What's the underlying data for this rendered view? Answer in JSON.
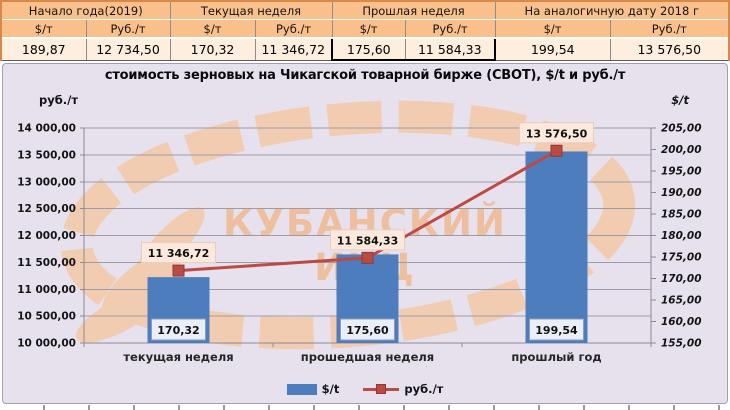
{
  "table": {
    "units": {
      "usd": "$/т",
      "rub": "Руб./т"
    },
    "groups": [
      {
        "label": "Начало года(2019)",
        "usd": "189,87",
        "rub": "12 734,50"
      },
      {
        "label": "Текущая неделя",
        "usd": "170,32",
        "rub": "11 346,72"
      },
      {
        "label": "Прошлая неделя",
        "usd": "175,60",
        "rub": "11 584,33",
        "highlighted": true
      },
      {
        "label": "На аналогичную дату 2018 г",
        "usd": "199,54",
        "rub": "13 576,50"
      }
    ]
  },
  "chart_data": {
    "type": "combo bar+line",
    "title": "стоимость зерновых на Чикагской товарной бирже (CBOT), $/t и руб./т",
    "categories": [
      "текущая неделя",
      "прошедшая неделя",
      "прошлый год"
    ],
    "series": [
      {
        "name": "$/t",
        "type": "bar",
        "axis": "right",
        "color": "#4d7dbc",
        "values": [
          170.32,
          175.6,
          199.54
        ],
        "labels": [
          "170,32",
          "175,60",
          "199,54"
        ]
      },
      {
        "name": "руб./т",
        "type": "line",
        "axis": "left",
        "color": "#bc4a44",
        "values": [
          11346.72,
          11584.33,
          13576.5
        ],
        "labels": [
          "11 346,72",
          "11 584,33",
          "13 576,50"
        ]
      }
    ],
    "left_axis": {
      "title": "руб./т",
      "min": 10000,
      "max": 14000,
      "step": 500,
      "tick_labels": [
        "14 000,00",
        "13 500,00",
        "13 000,00",
        "12 500,00",
        "12 000,00",
        "11 500,00",
        "11 000,00",
        "10 500,00",
        "10 000,00"
      ]
    },
    "right_axis": {
      "title": "$/t",
      "min": 155,
      "max": 205,
      "step": 5,
      "tick_labels": [
        "205,00",
        "200,00",
        "195,00",
        "190,00",
        "185,00",
        "180,00",
        "175,00",
        "170,00",
        "165,00",
        "160,00",
        "155,00"
      ]
    },
    "legend": [
      {
        "label": "$/t"
      },
      {
        "label": "руб./т"
      }
    ],
    "grid": "horizontal major, left axis",
    "legend_position": "bottom",
    "watermark": {
      "line1": "КУБАНСКИЙ",
      "line2": "ИКЦ"
    }
  },
  "colors": {
    "table_header_bg": "#f9c08b",
    "table_value_bg": "#fdeedd",
    "outer_border_orange": "#d9884a",
    "panel_bg": "#e6e1ed",
    "bar_blue": "#4d7dbc",
    "line_red": "#bc4a44",
    "line_label_bg": "#fce8dc",
    "bar_label_bg": "#e9eef7",
    "watermark_orange": "#f4c7a2"
  }
}
